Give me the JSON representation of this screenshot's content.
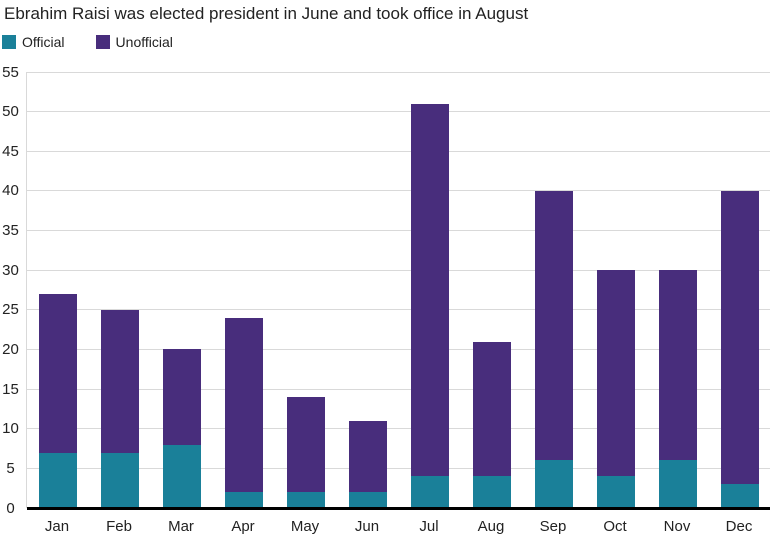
{
  "title": "Ebrahim Raisi was elected president in June and took office in August",
  "legend": {
    "items": [
      {
        "label": "Official",
        "color": "#1A8099"
      },
      {
        "label": "Unofficial",
        "color": "#482D7C"
      }
    ]
  },
  "chart_data": {
    "type": "bar",
    "stacked": true,
    "title": "Ebrahim Raisi was elected president in June and took office in August",
    "categories": [
      "Jan",
      "Feb",
      "Mar",
      "Apr",
      "May",
      "Jun",
      "Jul",
      "Aug",
      "Sep",
      "Oct",
      "Nov",
      "Dec"
    ],
    "series": [
      {
        "name": "Official",
        "color": "#1A8099",
        "values": [
          7,
          7,
          8,
          2,
          2,
          2,
          4,
          4,
          6,
          4,
          6,
          3
        ]
      },
      {
        "name": "Unofficial",
        "color": "#482D7C",
        "values": [
          20,
          18,
          12,
          22,
          12,
          9,
          47,
          17,
          34,
          26,
          24,
          37
        ]
      }
    ],
    "totals": [
      27,
      25,
      20,
      24,
      14,
      11,
      51,
      21,
      40,
      30,
      30,
      40
    ],
    "xlabel": "",
    "ylabel": "",
    "ylim": [
      0,
      55
    ],
    "ytick_step": 5,
    "grid": true,
    "legend_position": "top-left",
    "colors": {
      "gridline": "#d9d9d9",
      "axis_line": "#000000",
      "text": "#222222",
      "background": "#ffffff"
    }
  }
}
